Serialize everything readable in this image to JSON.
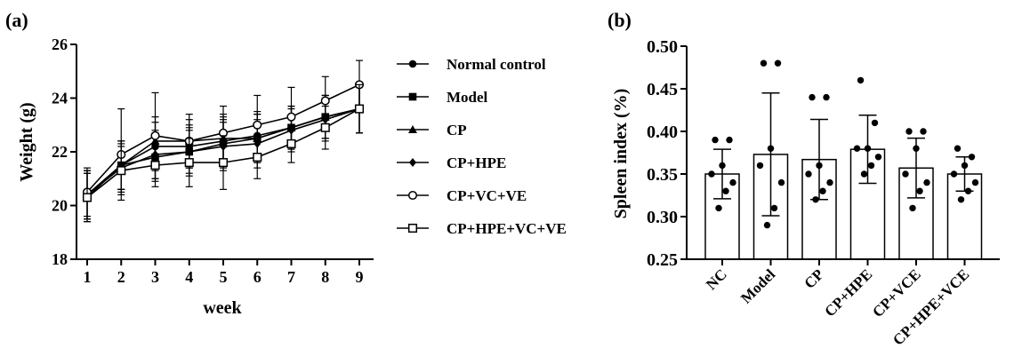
{
  "panels": {
    "a": {
      "label": "(a)"
    },
    "b": {
      "label": "(b)"
    }
  },
  "chart_data": [
    {
      "type": "line",
      "panel": "(a)",
      "title": "",
      "xlabel": "week",
      "ylabel": "Weight (g)",
      "xlim": [
        1,
        9
      ],
      "ylim": [
        18,
        26
      ],
      "xticks": [
        1,
        2,
        3,
        4,
        5,
        6,
        7,
        8,
        9
      ],
      "yticks": [
        18,
        20,
        22,
        24,
        26
      ],
      "x": [
        1,
        2,
        3,
        4,
        5,
        6,
        7,
        8,
        9
      ],
      "legend_position": "right",
      "series": [
        {
          "name": "Normal control",
          "marker": "circle-filled",
          "values": [
            20.4,
            21.5,
            22.2,
            22.2,
            22.4,
            22.6,
            22.9,
            23.3,
            23.6
          ],
          "err": [
            0.9,
            0.9,
            0.9,
            0.8,
            0.9,
            0.9,
            0.8,
            0.8,
            0.9
          ]
        },
        {
          "name": "Model",
          "marker": "square-filled",
          "values": [
            20.3,
            21.5,
            21.8,
            22.0,
            22.3,
            22.5,
            22.9,
            23.3,
            23.6
          ],
          "err": [
            0.9,
            0.9,
            0.9,
            0.9,
            0.9,
            0.9,
            0.8,
            0.8,
            0.9
          ]
        },
        {
          "name": "CP",
          "marker": "triangle-filled",
          "values": [
            20.4,
            21.5,
            22.4,
            22.4,
            22.5,
            22.5,
            22.9,
            23.3,
            23.6
          ],
          "err": [
            0.9,
            0.9,
            0.9,
            0.8,
            0.9,
            0.9,
            0.8,
            0.8,
            0.9
          ]
        },
        {
          "name": "CP+HPE",
          "marker": "diamond-filled",
          "values": [
            20.4,
            21.4,
            21.9,
            22.0,
            22.2,
            22.3,
            22.8,
            23.2,
            23.6
          ],
          "err": [
            0.9,
            0.9,
            0.9,
            0.8,
            0.9,
            0.9,
            0.8,
            0.8,
            0.9
          ]
        },
        {
          "name": "CP+VC+VE",
          "marker": "circle-open",
          "values": [
            20.5,
            21.9,
            22.6,
            22.4,
            22.7,
            23.0,
            23.3,
            23.9,
            24.5
          ],
          "err": [
            0.9,
            1.7,
            1.6,
            1.0,
            1.0,
            1.1,
            1.1,
            0.9,
            0.9
          ]
        },
        {
          "name": "CP+HPE+VC+VE",
          "marker": "square-open",
          "values": [
            20.3,
            21.3,
            21.5,
            21.6,
            21.6,
            21.8,
            22.3,
            22.9,
            23.6
          ],
          "err": [
            0.9,
            0.9,
            0.8,
            0.9,
            1.0,
            0.8,
            0.7,
            0.8,
            0.9
          ]
        }
      ]
    },
    {
      "type": "bar",
      "panel": "(b)",
      "title": "",
      "xlabel": "",
      "ylabel": "Spleen index (%)",
      "ylim": [
        0.25,
        0.5
      ],
      "yticks": [
        0.25,
        0.3,
        0.35,
        0.4,
        0.45,
        0.5
      ],
      "categories": [
        "NC",
        "Model",
        "CP",
        "CP+HPE",
        "CP+VCE",
        "CP+HPE+VCE"
      ],
      "values": [
        0.35,
        0.373,
        0.367,
        0.379,
        0.357,
        0.35
      ],
      "err": [
        0.029,
        0.072,
        0.047,
        0.04,
        0.035,
        0.02
      ],
      "points": [
        [
          0.39,
          0.39,
          0.36,
          0.35,
          0.34,
          0.33,
          0.31
        ],
        [
          0.48,
          0.48,
          0.38,
          0.36,
          0.34,
          0.31,
          0.29
        ],
        [
          0.44,
          0.44,
          0.36,
          0.35,
          0.34,
          0.33,
          0.32
        ],
        [
          0.46,
          0.41,
          0.38,
          0.38,
          0.37,
          0.36,
          0.35
        ],
        [
          0.4,
          0.4,
          0.38,
          0.35,
          0.34,
          0.33,
          0.31
        ],
        [
          0.38,
          0.37,
          0.36,
          0.35,
          0.34,
          0.33,
          0.32
        ]
      ]
    }
  ]
}
